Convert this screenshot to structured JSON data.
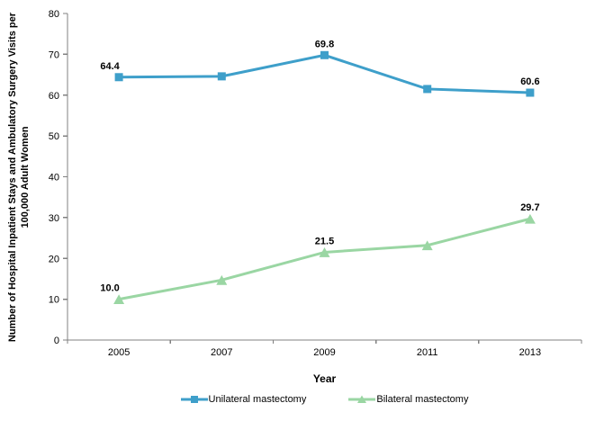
{
  "chart_data": {
    "type": "line",
    "x": [
      "2005",
      "2007",
      "2009",
      "2011",
      "2013"
    ],
    "series": [
      {
        "name": "Unilateral mastectomy",
        "values": [
          64.4,
          64.6,
          69.8,
          61.5,
          60.6
        ],
        "color": "#3E9FCA",
        "marker": "square",
        "labeled_points": [
          0,
          2,
          4
        ],
        "point_labels": [
          "64.4",
          "69.8",
          "60.6"
        ]
      },
      {
        "name": "Bilateral mastectomy",
        "values": [
          10.0,
          14.7,
          21.5,
          23.2,
          29.7
        ],
        "color": "#9AD6A3",
        "marker": "triangle",
        "labeled_points": [
          0,
          2,
          4
        ],
        "point_labels": [
          "10.0",
          "21.5",
          "29.7"
        ]
      }
    ],
    "xlabel": "Year",
    "ylabel": "Number of Hospital Inpatient Stays and Ambulatory Surgery Visits per 100,000 Adult Women",
    "ylim": [
      0,
      80
    ],
    "ytick_step": 10,
    "yticks": [
      "0",
      "10",
      "20",
      "30",
      "40",
      "50",
      "60",
      "70",
      "80"
    ],
    "grid": false,
    "legend_position": "bottom",
    "colors": {
      "axis": "#808080",
      "text": "#000000",
      "data_label": "#000000"
    }
  }
}
